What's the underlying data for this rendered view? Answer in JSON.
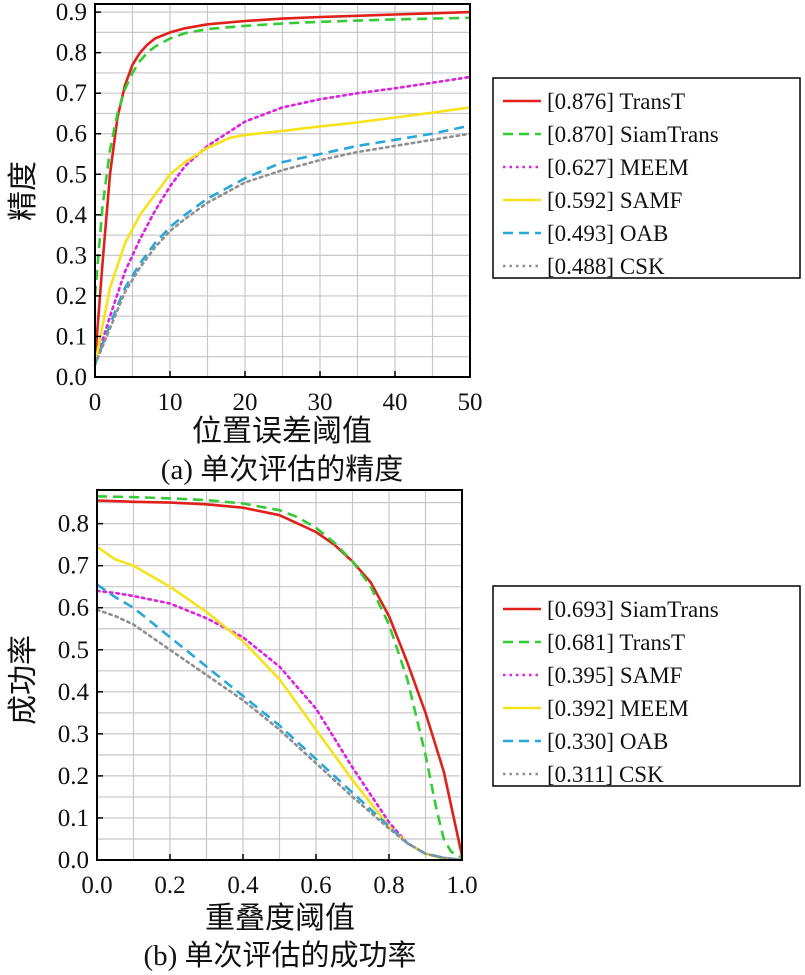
{
  "chart_data": [
    {
      "type": "line",
      "caption": "(a) 单次评估的精度",
      "xlabel": "位置误差阈值",
      "ylabel": "精度",
      "xlim": [
        0,
        50
      ],
      "ylim": [
        0,
        0.92
      ],
      "xticks": [
        0,
        10,
        20,
        30,
        40,
        50
      ],
      "yticks": [
        0.0,
        0.1,
        0.2,
        0.3,
        0.4,
        0.5,
        0.6,
        0.7,
        0.8,
        0.9
      ],
      "grid": true,
      "legend_position": "right",
      "series": [
        {
          "name": "[0.876] TransT",
          "color": "#e0201b",
          "style": "solid",
          "x": [
            0,
            1,
            2,
            3,
            4,
            5,
            6,
            7,
            8,
            10,
            12,
            15,
            20,
            25,
            30,
            35,
            40,
            45,
            50
          ],
          "y": [
            0.04,
            0.28,
            0.5,
            0.64,
            0.72,
            0.77,
            0.8,
            0.82,
            0.835,
            0.85,
            0.86,
            0.87,
            0.878,
            0.884,
            0.888,
            0.891,
            0.894,
            0.897,
            0.9
          ]
        },
        {
          "name": "[0.870] SiamTrans",
          "color": "#33cc33",
          "style": "dashed",
          "x": [
            0,
            1,
            2,
            3,
            4,
            5,
            6,
            7,
            8,
            10,
            12,
            15,
            20,
            25,
            30,
            35,
            40,
            45,
            50
          ],
          "y": [
            0.2,
            0.42,
            0.56,
            0.65,
            0.71,
            0.75,
            0.78,
            0.8,
            0.815,
            0.835,
            0.848,
            0.858,
            0.866,
            0.872,
            0.876,
            0.879,
            0.882,
            0.884,
            0.886
          ]
        },
        {
          "name": "[0.627] MEEM",
          "color": "#e020e0",
          "style": "dotted",
          "x": [
            0,
            2,
            4,
            6,
            8,
            10,
            12,
            15,
            20,
            25,
            30,
            35,
            40,
            45,
            50
          ],
          "y": [
            0.03,
            0.15,
            0.26,
            0.34,
            0.41,
            0.47,
            0.52,
            0.57,
            0.63,
            0.665,
            0.685,
            0.7,
            0.712,
            0.726,
            0.74
          ]
        },
        {
          "name": "[0.592] SAMF",
          "color": "#f5e31c",
          "style": "solid",
          "x": [
            0,
            2,
            4,
            6,
            8,
            10,
            12,
            15,
            18,
            20,
            25,
            30,
            35,
            40,
            45,
            50
          ],
          "y": [
            0.03,
            0.22,
            0.33,
            0.4,
            0.45,
            0.5,
            0.53,
            0.565,
            0.59,
            0.597,
            0.607,
            0.618,
            0.628,
            0.64,
            0.652,
            0.665
          ]
        },
        {
          "name": "[0.493] OAB",
          "color": "#2aa7d9",
          "style": "dashed",
          "x": [
            0,
            2,
            4,
            6,
            8,
            10,
            12,
            15,
            20,
            25,
            30,
            35,
            40,
            45,
            50
          ],
          "y": [
            0.03,
            0.13,
            0.22,
            0.28,
            0.33,
            0.37,
            0.4,
            0.44,
            0.49,
            0.53,
            0.55,
            0.57,
            0.585,
            0.6,
            0.62
          ]
        },
        {
          "name": "[0.488] CSK",
          "color": "#909090",
          "style": "dotted",
          "x": [
            0,
            2,
            4,
            6,
            8,
            10,
            12,
            15,
            20,
            25,
            30,
            35,
            40,
            45,
            50
          ],
          "y": [
            0.03,
            0.12,
            0.21,
            0.27,
            0.32,
            0.36,
            0.39,
            0.43,
            0.48,
            0.51,
            0.535,
            0.555,
            0.57,
            0.585,
            0.6
          ]
        }
      ]
    },
    {
      "type": "line",
      "caption": "(b) 单次评估的成功率",
      "xlabel": "重叠度阈值",
      "ylabel": "成功率",
      "xlim": [
        0,
        1
      ],
      "ylim": [
        0,
        0.88
      ],
      "xticks": [
        0.0,
        0.2,
        0.4,
        0.6,
        0.8,
        1.0
      ],
      "yticks": [
        0.0,
        0.1,
        0.2,
        0.3,
        0.4,
        0.5,
        0.6,
        0.7,
        0.8
      ],
      "grid": true,
      "legend_position": "right",
      "series": [
        {
          "name": "[0.693] SiamTrans",
          "color": "#e0201b",
          "style": "solid",
          "x": [
            0,
            0.1,
            0.2,
            0.3,
            0.4,
            0.5,
            0.55,
            0.6,
            0.65,
            0.7,
            0.75,
            0.8,
            0.85,
            0.9,
            0.95,
            1.0
          ],
          "y": [
            0.855,
            0.852,
            0.85,
            0.846,
            0.838,
            0.82,
            0.8,
            0.78,
            0.75,
            0.71,
            0.66,
            0.58,
            0.47,
            0.35,
            0.21,
            0.01
          ]
        },
        {
          "name": "[0.681] TransT",
          "color": "#33cc33",
          "style": "dashed",
          "x": [
            0,
            0.1,
            0.2,
            0.3,
            0.4,
            0.5,
            0.55,
            0.6,
            0.65,
            0.7,
            0.75,
            0.8,
            0.85,
            0.9,
            0.93,
            0.95,
            0.97,
            1.0
          ],
          "y": [
            0.865,
            0.863,
            0.86,
            0.856,
            0.848,
            0.832,
            0.815,
            0.79,
            0.755,
            0.71,
            0.65,
            0.56,
            0.43,
            0.25,
            0.12,
            0.05,
            0.02,
            0.005
          ]
        },
        {
          "name": "[0.395] SAMF",
          "color": "#e020e0",
          "style": "dotted",
          "x": [
            0,
            0.05,
            0.1,
            0.2,
            0.3,
            0.4,
            0.5,
            0.6,
            0.7,
            0.8,
            0.85,
            0.9,
            0.95,
            1.0
          ],
          "y": [
            0.64,
            0.635,
            0.628,
            0.61,
            0.575,
            0.53,
            0.46,
            0.36,
            0.22,
            0.09,
            0.04,
            0.015,
            0.005,
            0.0
          ]
        },
        {
          "name": "[0.392] MEEM",
          "color": "#f5e31c",
          "style": "solid",
          "x": [
            0,
            0.05,
            0.1,
            0.2,
            0.3,
            0.4,
            0.5,
            0.6,
            0.7,
            0.8,
            0.85,
            0.9,
            0.95,
            1.0
          ],
          "y": [
            0.745,
            0.715,
            0.7,
            0.65,
            0.59,
            0.52,
            0.43,
            0.31,
            0.19,
            0.08,
            0.04,
            0.015,
            0.003,
            0.0
          ]
        },
        {
          "name": "[0.330] OAB",
          "color": "#2aa7d9",
          "style": "dashed",
          "x": [
            0,
            0.05,
            0.1,
            0.2,
            0.3,
            0.4,
            0.5,
            0.6,
            0.7,
            0.8,
            0.85,
            0.9,
            0.95,
            1.0
          ],
          "y": [
            0.655,
            0.625,
            0.6,
            0.53,
            0.46,
            0.39,
            0.32,
            0.24,
            0.16,
            0.08,
            0.04,
            0.015,
            0.005,
            0.0
          ]
        },
        {
          "name": "[0.311] CSK",
          "color": "#909090",
          "style": "dotted",
          "x": [
            0,
            0.05,
            0.1,
            0.2,
            0.3,
            0.4,
            0.5,
            0.6,
            0.7,
            0.8,
            0.85,
            0.9,
            0.95,
            1.0
          ],
          "y": [
            0.595,
            0.58,
            0.56,
            0.5,
            0.44,
            0.38,
            0.31,
            0.23,
            0.15,
            0.075,
            0.04,
            0.015,
            0.005,
            0.0
          ]
        }
      ]
    }
  ]
}
